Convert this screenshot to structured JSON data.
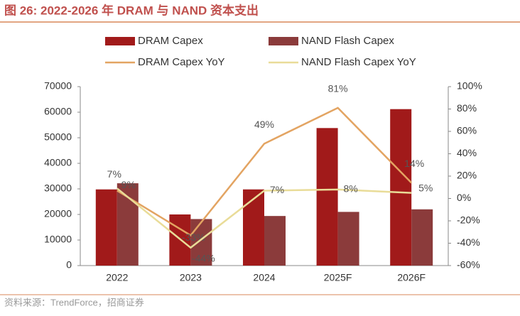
{
  "chart_data": {
    "type": "bar",
    "title": "图 26:  2022-2026 年 DRAM 与 NAND 资本支出",
    "source": "资料来源：TrendForce，招商证券",
    "categories": [
      "2022",
      "2023",
      "2024",
      "2025F",
      "2026F"
    ],
    "ylim": [
      0,
      70000
    ],
    "yticks": [
      0,
      10000,
      20000,
      30000,
      40000,
      50000,
      60000,
      70000
    ],
    "y2lim": [
      -60,
      100
    ],
    "y2ticks": [
      {
        "value": -60,
        "label": "-60%"
      },
      {
        "value": -40,
        "label": "-40%"
      },
      {
        "value": -20,
        "label": "-20%"
      },
      {
        "value": 0,
        "label": "0%"
      },
      {
        "value": 20,
        "label": "20%"
      },
      {
        "value": 40,
        "label": "40%"
      },
      {
        "value": 60,
        "label": "60%"
      },
      {
        "value": 80,
        "label": "80%"
      },
      {
        "value": 100,
        "label": "100%"
      }
    ],
    "grid": false,
    "series": [
      {
        "name": "DRAM Capex",
        "type": "bar",
        "color": "#a11a1a",
        "values": [
          29800,
          20000,
          29800,
          53800,
          61200
        ]
      },
      {
        "name": "NAND Flash Capex",
        "type": "bar",
        "color": "#8b3b3b",
        "values": [
          32200,
          18200,
          19400,
          21000,
          22000
        ]
      },
      {
        "name": "DRAM Capex YoY",
        "type": "line",
        "axis": "y2",
        "color": "#e3a462",
        "values": [
          7,
          -33,
          49,
          81,
          14
        ],
        "value_labels": [
          "7%",
          "-33%",
          "49%",
          "81%",
          "14%"
        ]
      },
      {
        "name": "NAND Flash Capex YoY",
        "type": "line",
        "axis": "y2",
        "color": "#e9dc98",
        "values": [
          9,
          -44,
          7,
          8,
          5
        ],
        "value_labels": [
          "9%",
          "-44%",
          "7%",
          "8%",
          "5%"
        ]
      }
    ]
  }
}
